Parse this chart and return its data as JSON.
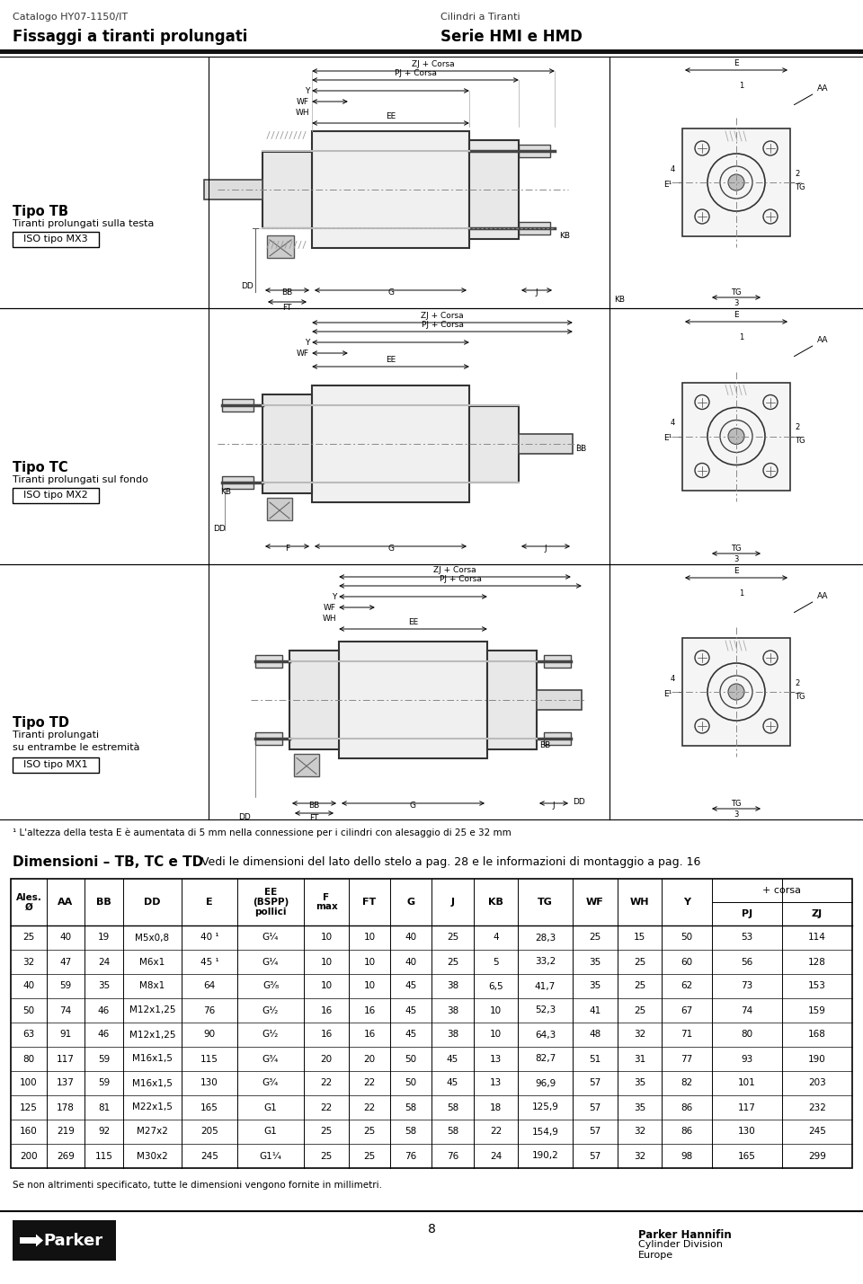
{
  "header_left_small": "Catalogo HY07-1150/IT",
  "header_left_bold": "Fissaggi a tiranti prolungati",
  "header_right_small": "Cilindri a Tiranti",
  "header_right_bold": "Serie HMI e HMD",
  "tipo_tb_label": "Tipo TB",
  "tipo_tb_desc1": "Tiranti prolungati sulla testa",
  "tipo_tb_iso": "ISO tipo MX3",
  "tipo_tc_label": "Tipo TC",
  "tipo_tc_desc1": "Tiranti prolungati sul fondo",
  "tipo_tc_iso": "ISO tipo MX2",
  "tipo_td_label": "Tipo TD",
  "tipo_td_desc1": "Tiranti prolungati",
  "tipo_td_desc2": "su entrambe le estremità",
  "tipo_td_iso": "ISO tipo MX1",
  "footnote": "¹ L'altezza della testa E è aumentata di 5 mm nella connessione per i cilindri con alesaggio di 25 e 32 mm",
  "dim_title_bold": "Dimensioni – TB, TC e TD",
  "dim_title_normal": " Vedi le dimensioni del lato dello stelo a pag. 28 e le informazioni di montaggio a pag. 16",
  "corsa_header": "+ corsa",
  "table_cols": [
    "Ales.\nØ",
    "AA",
    "BB",
    "DD",
    "E",
    "EE\n(BSPP)\npollici",
    "F\nmax",
    "FT",
    "G",
    "J",
    "KB",
    "TG",
    "WF",
    "WH",
    "Y",
    "PJ",
    "ZJ"
  ],
  "table_data": [
    [
      "25",
      "40",
      "19",
      "M5x0,8",
      "40 ¹",
      "G¹⁄₄",
      "10",
      "10",
      "40",
      "25",
      "4",
      "28,3",
      "25",
      "15",
      "50",
      "53",
      "114"
    ],
    [
      "32",
      "47",
      "24",
      "M6x1",
      "45 ¹",
      "G¹⁄₄",
      "10",
      "10",
      "40",
      "25",
      "5",
      "33,2",
      "35",
      "25",
      "60",
      "56",
      "128"
    ],
    [
      "40",
      "59",
      "35",
      "M8x1",
      "64",
      "G³⁄₈",
      "10",
      "10",
      "45",
      "38",
      "6,5",
      "41,7",
      "35",
      "25",
      "62",
      "73",
      "153"
    ],
    [
      "50",
      "74",
      "46",
      "M12x1,25",
      "76",
      "G¹⁄₂",
      "16",
      "16",
      "45",
      "38",
      "10",
      "52,3",
      "41",
      "25",
      "67",
      "74",
      "159"
    ],
    [
      "63",
      "91",
      "46",
      "M12x1,25",
      "90",
      "G¹⁄₂",
      "16",
      "16",
      "45",
      "38",
      "10",
      "64,3",
      "48",
      "32",
      "71",
      "80",
      "168"
    ],
    [
      "80",
      "117",
      "59",
      "M16x1,5",
      "115",
      "G³⁄₄",
      "20",
      "20",
      "50",
      "45",
      "13",
      "82,7",
      "51",
      "31",
      "77",
      "93",
      "190"
    ],
    [
      "100",
      "137",
      "59",
      "M16x1,5",
      "130",
      "G³⁄₄",
      "22",
      "22",
      "50",
      "45",
      "13",
      "96,9",
      "57",
      "35",
      "82",
      "101",
      "203"
    ],
    [
      "125",
      "178",
      "81",
      "M22x1,5",
      "165",
      "G1",
      "22",
      "22",
      "58",
      "58",
      "18",
      "125,9",
      "57",
      "35",
      "86",
      "117",
      "232"
    ],
    [
      "160",
      "219",
      "92",
      "M27x2",
      "205",
      "G1",
      "25",
      "25",
      "58",
      "58",
      "22",
      "154,9",
      "57",
      "32",
      "86",
      "130",
      "245"
    ],
    [
      "200",
      "269",
      "115",
      "M30x2",
      "245",
      "G1¹⁄₄",
      "25",
      "25",
      "76",
      "76",
      "24",
      "190,2",
      "57",
      "32",
      "98",
      "165",
      "299"
    ]
  ],
  "footer_note": "Se non altrimenti specificato, tutte le dimensioni vengono fornite in millimetri.",
  "page_number": "8",
  "parker_company": "Parker Hannifin",
  "parker_div": "Cylinder Division",
  "parker_region": "Europe",
  "section_tops": [
    63,
    343,
    628
  ],
  "section_bots": [
    343,
    628,
    912
  ],
  "div1": 232,
  "div2": 678,
  "gray": "#888888",
  "darkgray": "#555555",
  "black": "#000000"
}
